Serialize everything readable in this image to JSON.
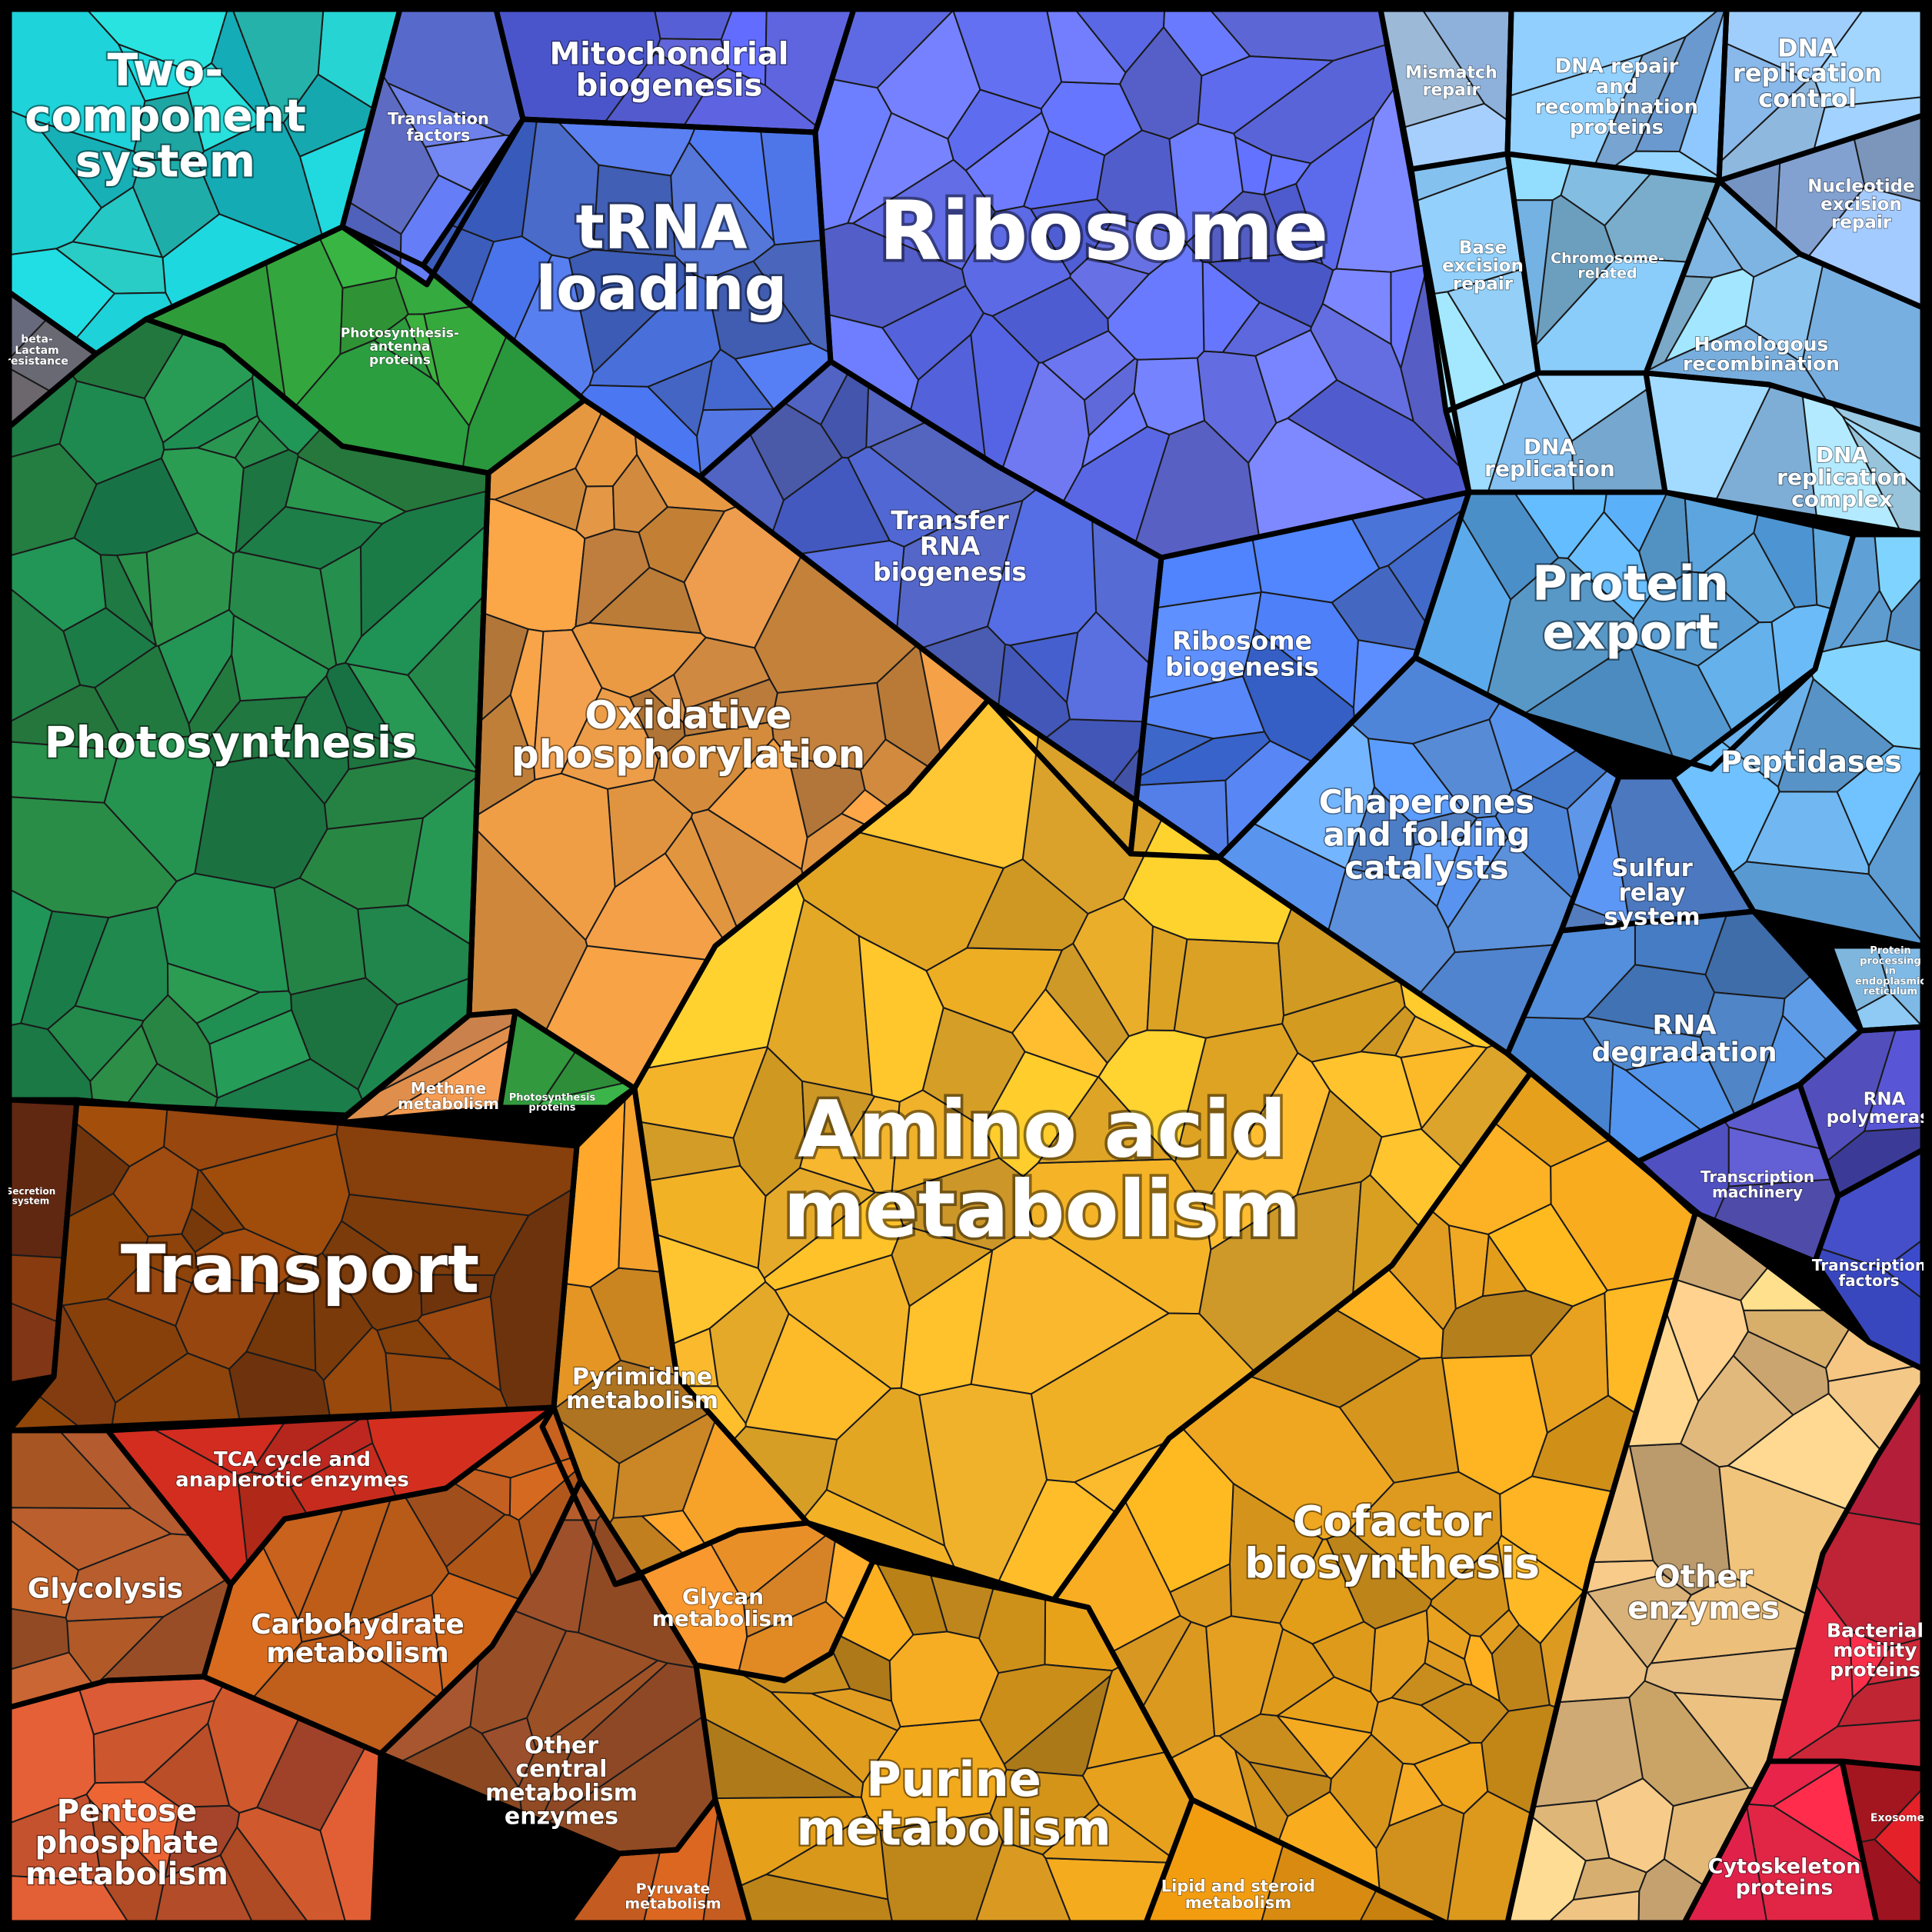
{
  "diagram": {
    "type": "voronoi-treemap",
    "regions": [
      {
        "id": "two-component-system",
        "label": [
          "Two-",
          "component",
          "system"
        ],
        "color": "#1fbfc0"
      },
      {
        "id": "beta-lactam-resistance",
        "label": [
          "beta-",
          "Lactam",
          "resistance"
        ],
        "color": "#6b6b78"
      },
      {
        "id": "photosynthesis-antenna-proteins",
        "label": [
          "Photosynthesis-",
          "antenna",
          "proteins"
        ],
        "color": "#2f9e3c"
      },
      {
        "id": "photosynthesis",
        "label": [
          "Photosynthesis"
        ],
        "color": "#23884a"
      },
      {
        "id": "translation-factors",
        "label": [
          "Translation",
          "factors"
        ],
        "color": "#5f72d6"
      },
      {
        "id": "mitochondrial-biogenesis",
        "label": [
          "Mitochondrial",
          "biogenesis"
        ],
        "color": "#5a62e0"
      },
      {
        "id": "trna-loading",
        "label": [
          "tRNA",
          "loading"
        ],
        "color": "#4b6fd8"
      },
      {
        "id": "ribosome",
        "label": [
          "Ribosome"
        ],
        "color": "#6470ee"
      },
      {
        "id": "transfer-rna-biogenesis",
        "label": [
          "Transfer",
          "RNA",
          "biogenesis"
        ],
        "color": "#4d62c8"
      },
      {
        "id": "ribosome-biogenesis",
        "label": [
          "Ribosome",
          "biogenesis"
        ],
        "color": "#4a78e8"
      },
      {
        "id": "mismatch-repair",
        "label": [
          "Mismatch",
          "repair"
        ],
        "color": "#a8cdf6"
      },
      {
        "id": "dna-repair-recombination",
        "label": [
          "DNA repair",
          "and",
          "recombination",
          "proteins"
        ],
        "color": "#86baf0"
      },
      {
        "id": "dna-replication-control",
        "label": [
          "DNA",
          "replication",
          "control"
        ],
        "color": "#9ccaf6"
      },
      {
        "id": "nucleotide-excision-repair",
        "label": [
          "Nucleotide",
          "excision",
          "repair"
        ],
        "color": "#8aaee6"
      },
      {
        "id": "base-excision-repair",
        "label": [
          "Base",
          "excision",
          "repair"
        ],
        "color": "#8cc8f2"
      },
      {
        "id": "chromosome-related",
        "label": [
          "Chromosome-",
          "related"
        ],
        "color": "#7fbde8"
      },
      {
        "id": "homologous-recombination",
        "label": [
          "Homologous",
          "recombination"
        ],
        "color": "#8ac4f4"
      },
      {
        "id": "dna-replication",
        "label": [
          "DNA",
          "replication"
        ],
        "color": "#8cc6f4"
      },
      {
        "id": "dna-replication-complex",
        "label": [
          "DNA",
          "replication",
          "complex"
        ],
        "color": "#9dd2f6"
      },
      {
        "id": "protein-export",
        "label": [
          "Protein",
          "export"
        ],
        "color": "#5aa6e4"
      },
      {
        "id": "chaperones",
        "label": [
          "Chaperones",
          "and folding",
          "catalysts"
        ],
        "color": "#5b95ea"
      },
      {
        "id": "peptidases",
        "label": [
          "Peptidases"
        ],
        "color": "#6cb4f0"
      },
      {
        "id": "sulfur-relay-system",
        "label": [
          "Sulfur",
          "relay",
          "system"
        ],
        "color": "#5a8fe6"
      },
      {
        "id": "protein-processing-er",
        "label": [
          "Protein",
          "processing",
          "in",
          "endoplasmic",
          "reticulum"
        ],
        "color": "#92cdf4"
      },
      {
        "id": "rna-degradation",
        "label": [
          "RNA",
          "degradation"
        ],
        "color": "#4c84cc"
      },
      {
        "id": "rna-polymerase",
        "label": [
          "RNA",
          "polymerase"
        ],
        "color": "#4848b8"
      },
      {
        "id": "transcription-machinery",
        "label": [
          "Transcription",
          "machinery"
        ],
        "color": "#5a58c8"
      },
      {
        "id": "transcription-factors",
        "label": [
          "Transcription",
          "factors"
        ],
        "color": "#3a48c4"
      },
      {
        "id": "oxidative-phosphorylation",
        "label": [
          "Oxidative",
          "phosphorylation"
        ],
        "color": "#d48c40"
      },
      {
        "id": "methane-metabolism",
        "label": [
          "Methane",
          "metabolism"
        ],
        "color": "#d98a4a"
      },
      {
        "id": "photosynthesis-proteins",
        "label": [
          "Photosynthesis",
          "proteins"
        ],
        "color": "#2f9e44"
      },
      {
        "id": "amino-acid-metabolism",
        "label": [
          "Amino acid",
          "metabolism"
        ],
        "color": "#f4b42a"
      },
      {
        "id": "secretion-system",
        "label": [
          "Secretion",
          "system"
        ],
        "color": "#7a3410"
      },
      {
        "id": "transport",
        "label": [
          "Transport"
        ],
        "color": "#8c420c"
      },
      {
        "id": "pyrimidine-metabolism",
        "label": [
          "Pyrimidine",
          "metabolism"
        ],
        "color": "#d88e26"
      },
      {
        "id": "cofactor-biosynthesis",
        "label": [
          "Cofactor",
          "biosynthesis"
        ],
        "color": "#e39e1e"
      },
      {
        "id": "other-enzymes",
        "label": [
          "Other",
          "enzymes"
        ],
        "color": "#e8bd7c"
      },
      {
        "id": "tca-cycle",
        "label": [
          "TCA cycle and",
          "anaplerotic enzymes"
        ],
        "color": "#b3251d"
      },
      {
        "id": "glycolysis",
        "label": [
          "Glycolysis"
        ],
        "color": "#b15a2a"
      },
      {
        "id": "carbohydrate-metabolism",
        "label": [
          "Carbohydrate",
          "metabolism"
        ],
        "color": "#c4601e"
      },
      {
        "id": "glycan-metabolism",
        "label": [
          "Glycan",
          "metabolism"
        ],
        "color": "#ee9228"
      },
      {
        "id": "other-central-metabolism",
        "label": [
          "Other",
          "central",
          "metabolism",
          "enzymes"
        ],
        "color": "#9c5028"
      },
      {
        "id": "pentose-phosphate",
        "label": [
          "Pentose",
          "phosphate",
          "metabolism"
        ],
        "color": "#c8542e"
      },
      {
        "id": "pyruvate-metabolism",
        "label": [
          "Pyruvate",
          "metabolism"
        ],
        "color": "#b8561c"
      },
      {
        "id": "purine-metabolism",
        "label": [
          "Purine",
          "metabolism"
        ],
        "color": "#d6961c"
      },
      {
        "id": "lipid-steroid-metabolism",
        "label": [
          "Lipid and steroid",
          "metabolism"
        ],
        "color": "#d68a10"
      },
      {
        "id": "bacterial-motility",
        "label": [
          "Bacterial",
          "motility",
          "proteins"
        ],
        "color": "#e02842"
      },
      {
        "id": "exosome",
        "label": [
          "Exosome"
        ],
        "color": "#c01a24"
      },
      {
        "id": "cytoskeleton-proteins",
        "label": [
          "Cytoskeleton",
          "proteins"
        ],
        "color": "#d82442"
      }
    ]
  }
}
